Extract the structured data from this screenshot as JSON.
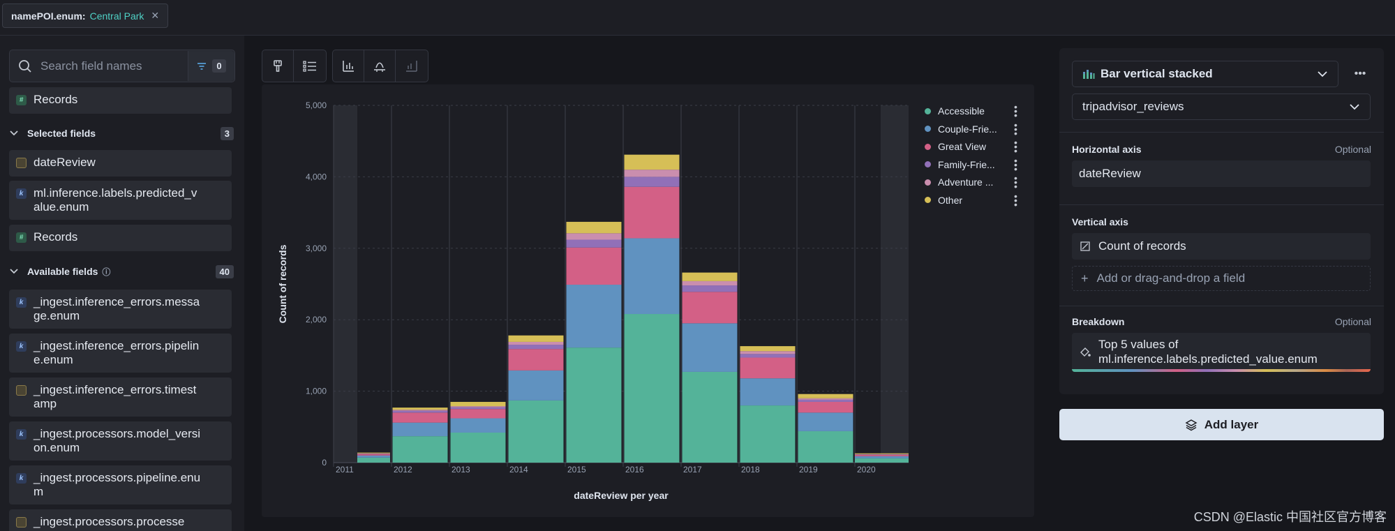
{
  "filter": {
    "key": "namePOI.enum:",
    "value": "Central Park"
  },
  "search": {
    "placeholder": "Search field names",
    "filter_count": "0"
  },
  "left": {
    "records_top": "Records",
    "selected_label": "Selected fields",
    "selected_count": "3",
    "selected_fields": [
      "dateReview",
      "ml.inference.labels.predicted_value.enum",
      "Records"
    ],
    "available_label": "Available fields",
    "available_count": "40",
    "available_fields": [
      "_ingest.inference_errors.message.enum",
      "_ingest.inference_errors.pipeline.enum",
      "_ingest.inference_errors.timestamp",
      "_ingest.processors.model_version.enum",
      "_ingest.processors.pipeline.enum",
      "_ingest.processors.processe"
    ]
  },
  "config": {
    "chart_type": "Bar vertical stacked",
    "data_view": "tripadvisor_reviews",
    "horizontal_axis_label": "Horizontal axis",
    "optional": "Optional",
    "horizontal_field": "dateReview",
    "vertical_axis_label": "Vertical axis",
    "vertical_field": "Count of records",
    "add_field": "Add or drag-and-drop a field",
    "breakdown_label": "Breakdown",
    "breakdown_field": "Top 5 values of ml.inference.labels.predicted_value.enum",
    "add_layer": "Add layer"
  },
  "watermark": "CSDN @Elastic 中国社区官方博客",
  "colors": {
    "accessible": "#54b399",
    "couple": "#6092c0",
    "great_view": "#d36086",
    "family": "#9170b8",
    "adventure": "#ca8eae",
    "other": "#d6bf57"
  },
  "chart_data": {
    "type": "bar",
    "stacked": true,
    "xlabel": "dateReview per year",
    "ylabel": "Count of records",
    "ylim": [
      0,
      5000
    ],
    "yticks": [
      0,
      1000,
      2000,
      3000,
      4000,
      5000
    ],
    "ytick_labels": [
      "0",
      "1,000",
      "2,000",
      "3,000",
      "4,000",
      "5,000"
    ],
    "categories": [
      "2011",
      "2012",
      "2013",
      "2014",
      "2015",
      "2016",
      "2017",
      "2018",
      "2019",
      "2020"
    ],
    "legend_position": "right",
    "series": [
      {
        "name": "Accessible",
        "color": "#54b399",
        "values": [
          70,
          370,
          420,
          870,
          1610,
          2080,
          1270,
          800,
          440,
          60
        ]
      },
      {
        "name": "Couple-Frie...",
        "color": "#6092c0",
        "values": [
          30,
          190,
          200,
          420,
          880,
          1060,
          680,
          380,
          260,
          30
        ]
      },
      {
        "name": "Great View",
        "color": "#d36086",
        "values": [
          20,
          140,
          130,
          300,
          520,
          720,
          440,
          290,
          150,
          20
        ]
      },
      {
        "name": "Family-Frie...",
        "color": "#9170b8",
        "values": [
          5,
          25,
          25,
          60,
          110,
          140,
          90,
          50,
          30,
          5
        ]
      },
      {
        "name": "Adventure ...",
        "color": "#ca8eae",
        "values": [
          5,
          15,
          15,
          40,
          90,
          100,
          60,
          40,
          20,
          5
        ]
      },
      {
        "name": "Other",
        "color": "#d6bf57",
        "values": [
          10,
          30,
          60,
          90,
          160,
          210,
          120,
          70,
          60,
          10
        ]
      }
    ]
  }
}
